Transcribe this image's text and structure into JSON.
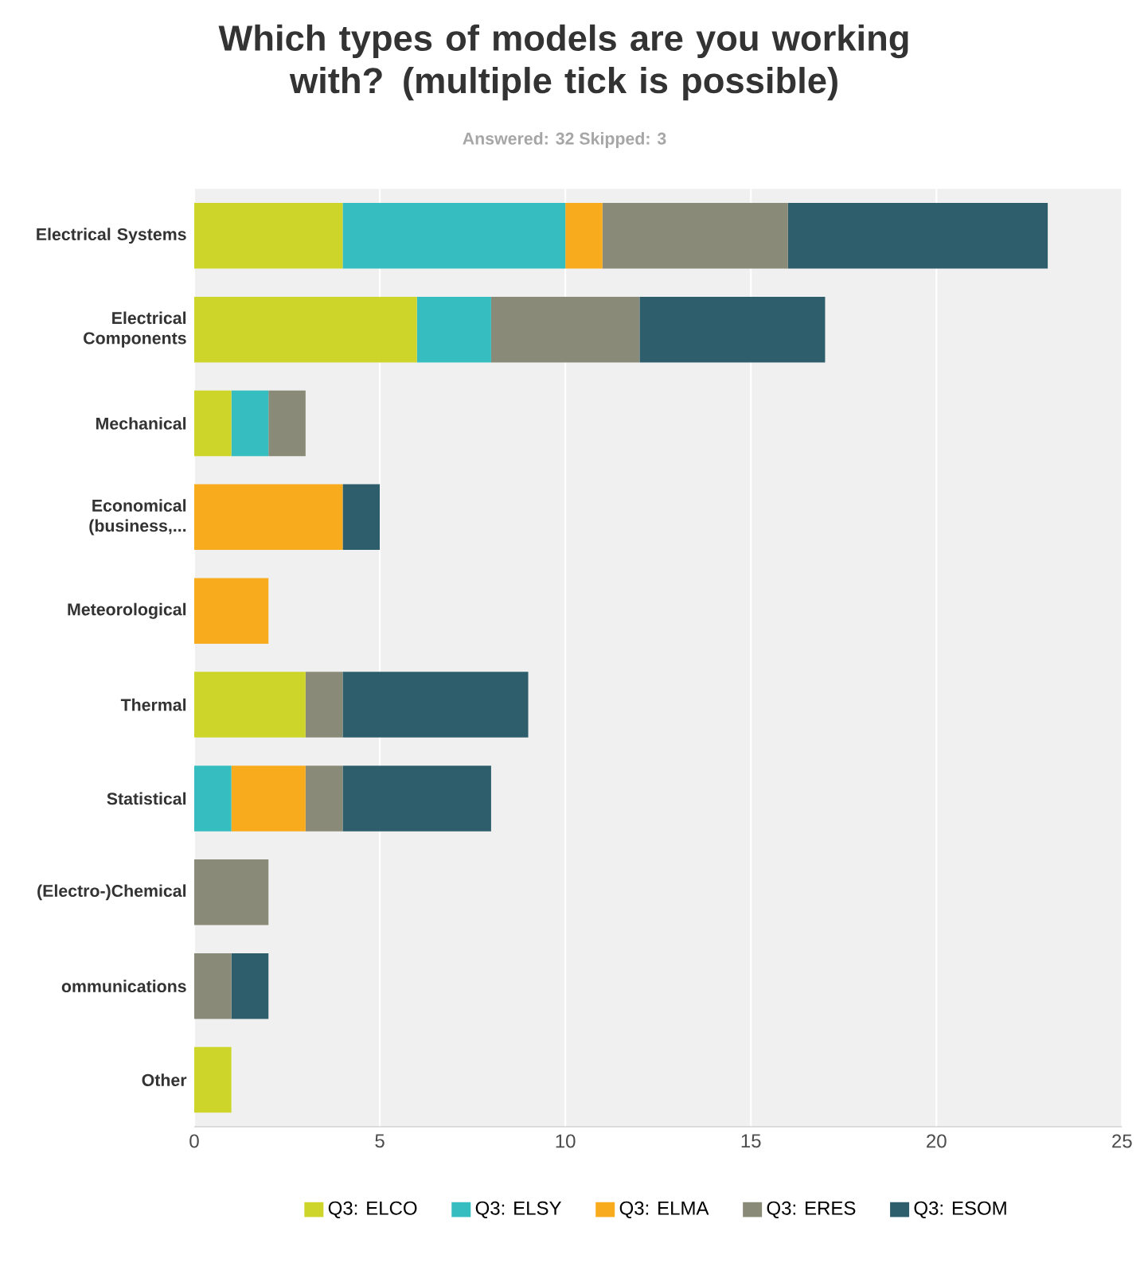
{
  "chart_data": {
    "type": "bar",
    "orientation": "horizontal",
    "stacked": true,
    "title": "Which types of models are you working with? (multiple tick is possible)",
    "subtitle": "Answered: 32    Skipped: 3",
    "categories": [
      "Electrical Systems",
      "Electrical Components",
      "Mechanical",
      "Economical (business,...",
      "Meteorological",
      "Thermal",
      "Statistical",
      "(Electro-)Chemical",
      "ommunications",
      "Other"
    ],
    "series": [
      {
        "name": "Q3: ELCO",
        "color": "#cdd52a",
        "values": [
          4,
          6,
          1,
          0,
          0,
          3,
          0,
          0,
          0,
          1
        ]
      },
      {
        "name": "Q3: ELSY",
        "color": "#35bdbf",
        "values": [
          6,
          2,
          1,
          0,
          0,
          0,
          1,
          0,
          0,
          0
        ]
      },
      {
        "name": "Q3: ELMA",
        "color": "#f7ab1d",
        "values": [
          1,
          0,
          0,
          4,
          2,
          0,
          2,
          0,
          0,
          0
        ]
      },
      {
        "name": "Q3: ERES",
        "color": "#8a8a78",
        "values": [
          5,
          4,
          1,
          0,
          0,
          1,
          1,
          2,
          1,
          0
        ]
      },
      {
        "name": "Q3: ESOM",
        "color": "#2e5d6b",
        "values": [
          7,
          5,
          0,
          1,
          0,
          5,
          4,
          0,
          1,
          0
        ]
      }
    ],
    "xlim": [
      0,
      25
    ],
    "xticks": [
      0,
      5,
      10,
      15,
      20,
      25
    ],
    "grid": "x",
    "legend": "bottom"
  }
}
